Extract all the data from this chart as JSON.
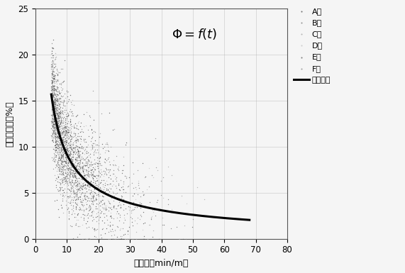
{
  "title_math": "$\\mathit{\\Phi} = f(t)$",
  "xlabel": "微鉢时（min/m）",
  "ylabel": "地层孔隙度（%）",
  "xlim": [
    0,
    80
  ],
  "ylim": [
    0,
    25
  ],
  "xticks": [
    0,
    10,
    20,
    30,
    40,
    50,
    60,
    70,
    80
  ],
  "yticks": [
    0,
    5,
    10,
    15,
    20,
    25
  ],
  "legend_labels": [
    "A井",
    "B井",
    "C井",
    "D井",
    "E井",
    "F井",
    "相关模型"
  ],
  "series_colors": [
    "#333333",
    "#666666",
    "#999999",
    "#bbbbbb",
    "#444444",
    "#777777"
  ],
  "series_sizes": [
    4,
    4,
    4,
    4,
    4,
    4
  ],
  "curve_color": "#000000",
  "curve_lw": 2.2,
  "background_color": "#f5f5f5",
  "grid_color": "#aaaaaa",
  "curve_a": 55.0,
  "curve_b": -0.78,
  "x_range_curve_start": 5.0,
  "x_range_curve_end": 68.0,
  "seed": 42
}
